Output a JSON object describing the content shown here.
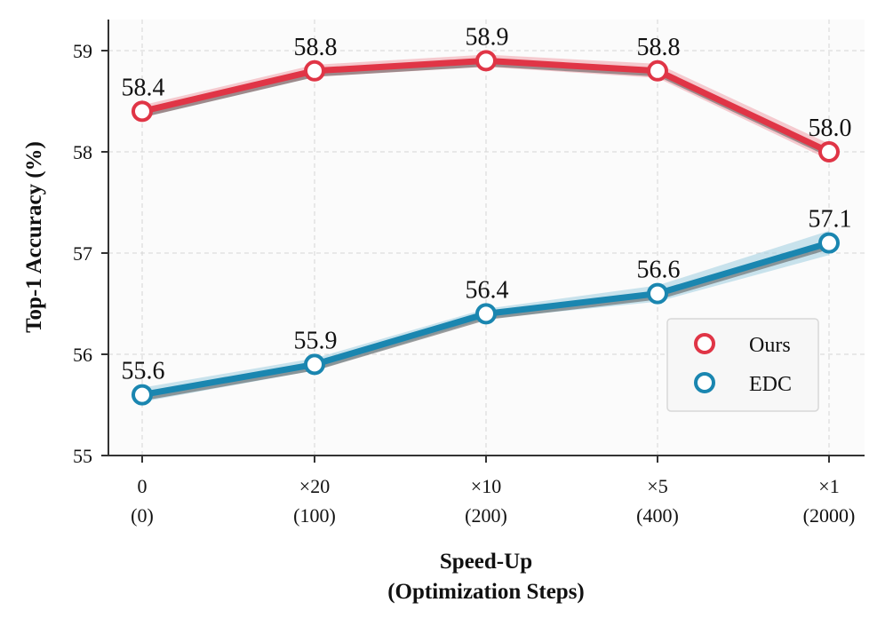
{
  "chart_data": {
    "type": "line",
    "title": "",
    "xlabel_lines": [
      "Speed-Up",
      "(Optimization Steps)"
    ],
    "ylabel": "Top-1 Accuracy (%)",
    "categories": [
      {
        "top": "0",
        "bottom": "(0)"
      },
      {
        "top": "×20",
        "bottom": "(100)"
      },
      {
        "top": "×10",
        "bottom": "(200)"
      },
      {
        "top": "×5",
        "bottom": "(400)"
      },
      {
        "top": "×1",
        "bottom": "(2000)"
      }
    ],
    "ylim": [
      55,
      59.3
    ],
    "yticks": [
      55,
      56,
      57,
      58,
      59
    ],
    "grid": true,
    "legend_position": "center-right",
    "series": [
      {
        "name": "Ours",
        "color": "#e03546",
        "band_color": "#f0a0aa",
        "values": [
          58.4,
          58.8,
          58.9,
          58.8,
          58.0
        ],
        "labels": [
          "58.4",
          "58.8",
          "58.9",
          "58.8",
          "58.0"
        ],
        "band": [
          0.06,
          0.06,
          0.06,
          0.07,
          0.08
        ]
      },
      {
        "name": "EDC",
        "color": "#1a86b0",
        "band_color": "#9fcde0",
        "values": [
          55.6,
          55.9,
          56.4,
          56.6,
          57.1
        ],
        "labels": [
          "55.6",
          "55.9",
          "56.4",
          "56.6",
          "57.1"
        ],
        "band": [
          0.07,
          0.06,
          0.05,
          0.08,
          0.12
        ]
      }
    ]
  }
}
